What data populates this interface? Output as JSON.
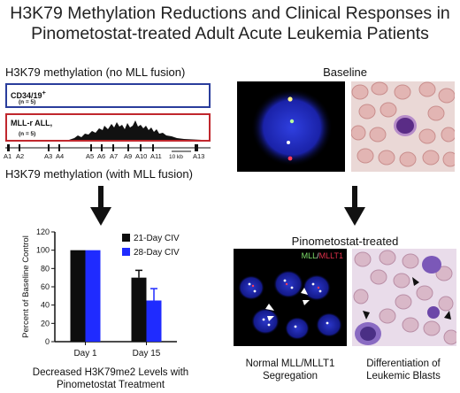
{
  "title": {
    "line1": "H3K79 Methylation Reductions and Clinical Responses in",
    "line2": "Pinometostat-treated Adult Acute Leukemia Patients"
  },
  "left_top_heading": "H3K79 methylation (no MLL fusion)",
  "left_mid_heading": "H3K79 methylation (with MLL fusion)",
  "tracks": {
    "control": {
      "label": "CD34/19",
      "superscript": "+",
      "n": "(n = 5)",
      "color": "#2a3d9c"
    },
    "mllr": {
      "label": "MLL-r ALL,",
      "n": "(n = 5)",
      "color": "#c0272d"
    }
  },
  "exons": [
    "A1",
    "A2",
    "A3",
    "A4",
    "A5",
    "A6",
    "A7",
    "A9",
    "A10",
    "A11",
    "A13"
  ],
  "scale_label": "10 kb",
  "right_top_heading": "Baseline",
  "right_mid_heading": "Pinometostat-treated",
  "fish_legend": {
    "mll": "MLL",
    "slash": "/",
    "mllt1": "MLLT1",
    "mll_color": "#7ee06a",
    "mllt1_color": "#e0304a"
  },
  "captions": {
    "chart": [
      "Decreased H3K79me2 Levels with",
      "Pinometostat Treatment"
    ],
    "fish": [
      "Normal MLL/MLLT1",
      "Segregation"
    ],
    "smear": [
      "Differentiation of",
      "Leukemic Blasts"
    ]
  },
  "chart_data": {
    "type": "bar",
    "categories": [
      "Day 1",
      "Day 15"
    ],
    "series": [
      {
        "name": "21-Day CIV",
        "values": [
          100,
          70
        ],
        "errors": [
          0,
          8
        ],
        "color": "#0d0d0d"
      },
      {
        "name": "28-Day CIV",
        "values": [
          100,
          45
        ],
        "errors": [
          0,
          13
        ],
        "color": "#1f2bff"
      }
    ],
    "ylabel": "Percent of Baseline Control",
    "ylim": [
      0,
      120
    ],
    "yticks": [
      "0",
      "20",
      "40",
      "60",
      "80",
      "100",
      "120"
    ],
    "legend": "top-right"
  }
}
